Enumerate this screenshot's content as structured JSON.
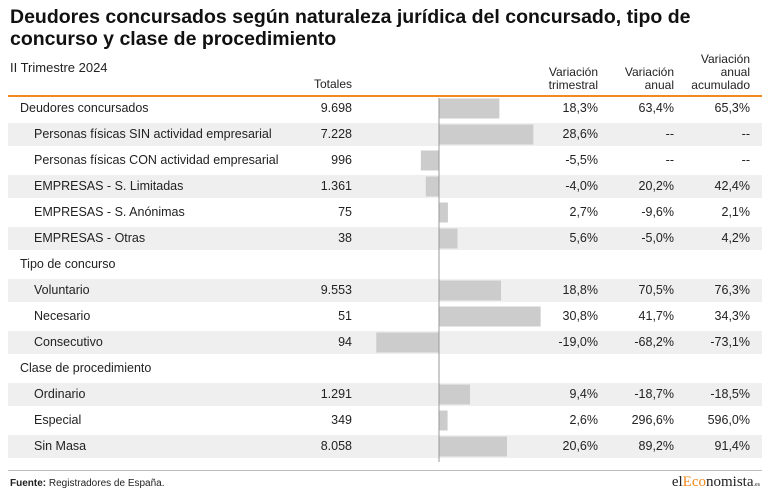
{
  "header": {
    "title": "Deudores concursados según naturaleza jurídica del concursado, tipo de concurso y clase de procedimiento",
    "subtitle": "II Trimestre 2024",
    "col_totales": "Totales",
    "col_trimestral": [
      "Variación",
      "trimestral"
    ],
    "col_anual": [
      "Variación",
      "anual"
    ],
    "col_acumulado": [
      "Variación",
      "anual",
      "acumulado"
    ]
  },
  "rows": [
    {
      "label": "Deudores concursados",
      "total": "9.698",
      "trimestral": "18,3%",
      "anual": "63,4%",
      "acumulado": "65,3%",
      "level": 0,
      "shaded": false
    },
    {
      "label": "Personas físicas SIN actividad empresarial",
      "total": "7.228",
      "trimestral": "28,6%",
      "anual": "--",
      "acumulado": "--",
      "level": 1,
      "shaded": true
    },
    {
      "label": "Personas físicas CON actividad empresarial",
      "total": "996",
      "trimestral": "-5,5%",
      "anual": "--",
      "acumulado": "--",
      "level": 1,
      "shaded": false
    },
    {
      "label": "EMPRESAS - S. Limitadas",
      "total": "1.361",
      "trimestral": "-4,0%",
      "anual": "20,2%",
      "acumulado": "42,4%",
      "level": 1,
      "shaded": true
    },
    {
      "label": "EMPRESAS - S. Anónimas",
      "total": "75",
      "trimestral": "2,7%",
      "anual": "-9,6%",
      "acumulado": "2,1%",
      "level": 1,
      "shaded": false
    },
    {
      "label": "EMPRESAS - Otras",
      "total": "38",
      "trimestral": "5,6%",
      "anual": "-5,0%",
      "acumulado": "4,2%",
      "level": 1,
      "shaded": true
    },
    {
      "label": "Tipo de concurso",
      "total": "",
      "trimestral": "",
      "anual": "",
      "acumulado": "",
      "level": 0,
      "shaded": false
    },
    {
      "label": "Voluntario",
      "total": "9.553",
      "trimestral": "18,8%",
      "anual": "70,5%",
      "acumulado": "76,3%",
      "level": 1,
      "shaded": true
    },
    {
      "label": "Necesario",
      "total": "51",
      "trimestral": "30,8%",
      "anual": "41,7%",
      "acumulado": "34,3%",
      "level": 1,
      "shaded": false
    },
    {
      "label": "Consecutivo",
      "total": "94",
      "trimestral": "-19,0%",
      "anual": "-68,2%",
      "acumulado": "-73,1%",
      "level": 1,
      "shaded": true
    },
    {
      "label": "Clase de procedimiento",
      "total": "",
      "trimestral": "",
      "anual": "",
      "acumulado": "",
      "level": 0,
      "shaded": false
    },
    {
      "label": "Ordinario",
      "total": "1.291",
      "trimestral": "9,4%",
      "anual": "-18,7%",
      "acumulado": "-18,5%",
      "level": 1,
      "shaded": true
    },
    {
      "label": "Especial",
      "total": "349",
      "trimestral": "2,6%",
      "anual": "296,6%",
      "acumulado": "596,0%",
      "level": 1,
      "shaded": false
    },
    {
      "label": "Sin Masa",
      "total": "8.058",
      "trimestral": "20,6%",
      "anual": "89,2%",
      "acumulado": "91,4%",
      "level": 1,
      "shaded": true
    }
  ],
  "chart_data": {
    "type": "bar",
    "orientation": "horizontal",
    "categories": [
      "Deudores concursados",
      "Personas físicas SIN actividad empresarial",
      "Personas físicas CON actividad empresarial",
      "EMPRESAS - S. Limitadas",
      "EMPRESAS - S. Anónimas",
      "EMPRESAS - Otras",
      "Voluntario",
      "Necesario",
      "Consecutivo",
      "Ordinario",
      "Especial",
      "Sin Masa"
    ],
    "values": [
      18.3,
      28.6,
      -5.5,
      -4.0,
      2.7,
      5.6,
      18.8,
      30.8,
      -19.0,
      9.4,
      2.6,
      20.6
    ],
    "xlim": [
      -20,
      32
    ],
    "grid": false,
    "bar_color": "#cccccc",
    "axis_color": "#999999"
  },
  "footer": {
    "source_label": "Fuente:",
    "source_text": " Registradores de España.",
    "logo_prefix": "el",
    "logo_accent": "Eco",
    "logo_suffix": "nomista",
    "logo_small": ".es"
  },
  "colors": {
    "accent": "#f08a1c",
    "shade": "#efefef",
    "bar": "#cccccc"
  }
}
